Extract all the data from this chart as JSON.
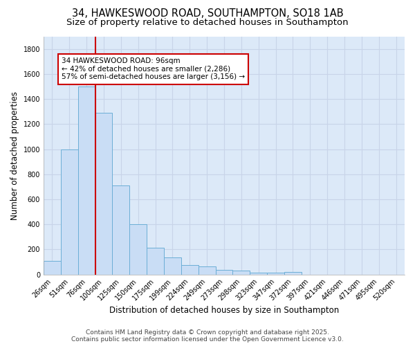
{
  "title_line1": "34, HAWKESWOOD ROAD, SOUTHAMPTON, SO18 1AB",
  "title_line2": "Size of property relative to detached houses in Southampton",
  "xlabel": "Distribution of detached houses by size in Southampton",
  "ylabel": "Number of detached properties",
  "categories": [
    "26sqm",
    "51sqm",
    "76sqm",
    "100sqm",
    "125sqm",
    "150sqm",
    "175sqm",
    "199sqm",
    "224sqm",
    "249sqm",
    "273sqm",
    "298sqm",
    "323sqm",
    "347sqm",
    "372sqm",
    "397sqm",
    "421sqm",
    "446sqm",
    "471sqm",
    "495sqm",
    "520sqm"
  ],
  "values": [
    110,
    1000,
    1500,
    1290,
    710,
    400,
    215,
    135,
    75,
    65,
    35,
    30,
    15,
    15,
    20,
    0,
    0,
    0,
    0,
    0,
    0
  ],
  "bar_color": "#c9ddf5",
  "bar_edge_color": "#6baed6",
  "bar_edge_width": 0.7,
  "grid_color": "#c8d4e8",
  "plot_bg_color": "#dce9f8",
  "fig_bg_color": "#ffffff",
  "ylim": [
    0,
    1900
  ],
  "yticks": [
    0,
    200,
    400,
    600,
    800,
    1000,
    1200,
    1400,
    1600,
    1800
  ],
  "property_line_color": "#cc0000",
  "property_line_x": 2.5,
  "annotation_text": "34 HAWKESWOOD ROAD: 96sqm\n← 42% of detached houses are smaller (2,286)\n57% of semi-detached houses are larger (3,156) →",
  "annotation_box_color": "#ffffff",
  "annotation_edge_color": "#cc0000",
  "footer_text": "Contains HM Land Registry data © Crown copyright and database right 2025.\nContains public sector information licensed under the Open Government Licence v3.0.",
  "title_fontsize": 10.5,
  "subtitle_fontsize": 9.5,
  "axis_label_fontsize": 8.5,
  "tick_fontsize": 7,
  "annotation_fontsize": 7.5,
  "footer_fontsize": 6.5
}
